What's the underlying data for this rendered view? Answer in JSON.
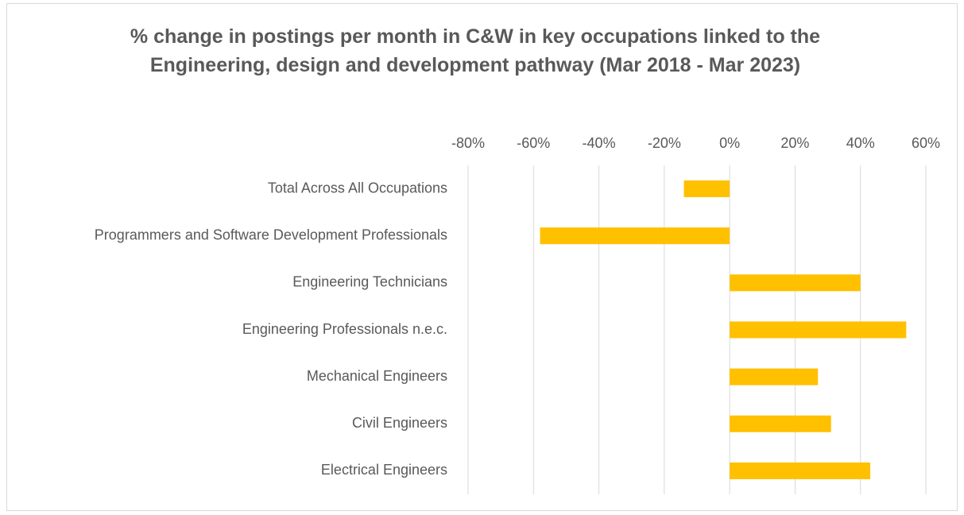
{
  "chart_data": {
    "type": "bar",
    "orientation": "horizontal",
    "title": "% change in postings per month in C&W in key occupations linked to the Engineering, design and development pathway (Mar 2018 - Mar 2023)",
    "categories": [
      "Total Across All Occupations",
      "Programmers and Software Development Professionals",
      "Engineering Technicians",
      "Engineering Professionals n.e.c.",
      "Mechanical Engineers",
      "Civil Engineers",
      "Electrical Engineers"
    ],
    "values": [
      -14,
      -58,
      40,
      54,
      27,
      31,
      43
    ],
    "color": "#ffc000",
    "xlim": [
      -80,
      60
    ],
    "xticks": [
      {
        "value": -80,
        "label": "-80%"
      },
      {
        "value": -60,
        "label": "-60%"
      },
      {
        "value": -40,
        "label": "-40%"
      },
      {
        "value": -20,
        "label": "-20%"
      },
      {
        "value": 0,
        "label": "0%"
      },
      {
        "value": 20,
        "label": "20%"
      },
      {
        "value": 40,
        "label": "40%"
      },
      {
        "value": 60,
        "label": "60%"
      }
    ],
    "grid": true
  }
}
